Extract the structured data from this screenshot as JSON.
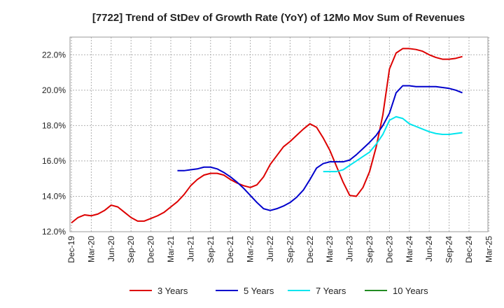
{
  "chart_data": {
    "type": "line",
    "title": "[7722]  Trend of StDev of Growth Rate (YoY) of 12Mo Mov Sum of Revenues",
    "xlabel": "",
    "ylabel": "",
    "ylim": [
      12.0,
      23.0
    ],
    "yticks": [
      12.0,
      14.0,
      16.0,
      18.0,
      20.0,
      22.0
    ],
    "ytick_labels": [
      "12.0%",
      "14.0%",
      "16.0%",
      "18.0%",
      "20.0%",
      "22.0%"
    ],
    "x_tick_labels": [
      "Dec-19",
      "Mar-20",
      "Jun-20",
      "Sep-20",
      "Dec-20",
      "Mar-21",
      "Jun-21",
      "Sep-21",
      "Dec-21",
      "Mar-22",
      "Jun-22",
      "Sep-22",
      "Dec-22",
      "Mar-23",
      "Jun-23",
      "Sep-23",
      "Dec-23",
      "Mar-24",
      "Jun-24",
      "Sep-24",
      "Dec-24",
      "Mar-25"
    ],
    "grid": true,
    "legend_position": "bottom",
    "series": [
      {
        "name": "3 Years",
        "color": "#dd0000",
        "values": [
          12.5,
          12.8,
          12.95,
          12.9,
          13.0,
          13.2,
          13.5,
          13.4,
          13.1,
          12.8,
          12.6,
          12.6,
          12.75,
          12.9,
          13.1,
          13.4,
          13.7,
          14.1,
          14.6,
          14.95,
          15.2,
          15.3,
          15.3,
          15.2,
          14.95,
          14.75,
          14.6,
          14.5,
          14.65,
          15.1,
          15.8,
          16.3,
          16.8,
          17.1,
          17.45,
          17.8,
          18.1,
          17.9,
          17.3,
          16.6,
          15.7,
          14.8,
          14.05,
          14.0,
          14.5,
          15.4,
          16.8,
          18.6,
          21.2,
          22.1,
          22.35,
          22.35,
          22.3,
          22.2,
          22.0,
          21.85,
          21.75,
          21.75,
          21.8,
          21.9
        ],
        "start_index": 0
      },
      {
        "name": "5 Years",
        "color": "#0000cc",
        "values": [
          15.45,
          15.45,
          15.5,
          15.55,
          15.65,
          15.65,
          15.55,
          15.35,
          15.1,
          14.8,
          14.45,
          14.05,
          13.65,
          13.3,
          13.2,
          13.3,
          13.45,
          13.65,
          13.95,
          14.35,
          14.95,
          15.6,
          15.85,
          15.95,
          15.95,
          15.95,
          16.05,
          16.35,
          16.7,
          17.05,
          17.45,
          18.0,
          18.7,
          19.85,
          20.25,
          20.25,
          20.2,
          20.2,
          20.2,
          20.2,
          20.15,
          20.1,
          20.0,
          19.85
        ],
        "start_index": 16
      },
      {
        "name": "7 Years",
        "color": "#00e5ee",
        "values": [
          15.4,
          15.4,
          15.4,
          15.5,
          15.75,
          16.0,
          16.25,
          16.5,
          16.95,
          17.5,
          18.3,
          18.5,
          18.4,
          18.1,
          17.95,
          17.8,
          17.65,
          17.55,
          17.5,
          17.5,
          17.55,
          17.6
        ],
        "start_index": 38
      },
      {
        "name": "10 Years",
        "color": "#228b22",
        "values": [],
        "start_index": 0
      }
    ]
  }
}
